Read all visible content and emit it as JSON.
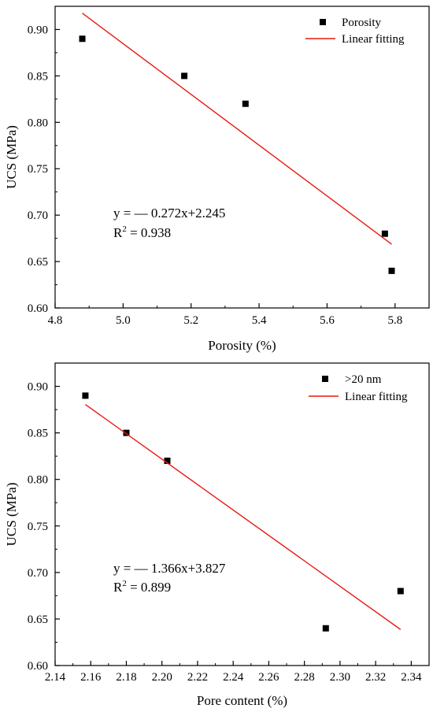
{
  "chart_data": [
    {
      "type": "scatter",
      "xlabel": "Porosity (%)",
      "ylabel": "UCS (MPa)",
      "xlim": [
        4.8,
        5.9
      ],
      "ylim": [
        0.6,
        0.925
      ],
      "xticks": [
        4.8,
        5.0,
        5.2,
        5.4,
        5.6,
        5.8
      ],
      "xtick_labels": [
        "4.8",
        "5.0",
        "5.2",
        "5.4",
        "5.6",
        "5.8"
      ],
      "yticks": [
        0.6,
        0.65,
        0.7,
        0.75,
        0.8,
        0.85,
        0.9
      ],
      "ytick_labels": [
        "0.60",
        "0.65",
        "0.70",
        "0.75",
        "0.80",
        "0.85",
        "0.90"
      ],
      "grid": false,
      "legend_position": "top-right",
      "series": [
        {
          "name": "Porosity",
          "kind": "scatter",
          "marker": "square",
          "color": "#000000",
          "points": [
            [
              4.88,
              0.89
            ],
            [
              5.18,
              0.85
            ],
            [
              5.36,
              0.82
            ],
            [
              5.77,
              0.68
            ],
            [
              5.79,
              0.64
            ]
          ]
        },
        {
          "name": "Linear fitting",
          "kind": "line",
          "color": "#e8190f",
          "points": [
            [
              4.88,
              0.9176
            ],
            [
              5.79,
              0.6687
            ]
          ]
        }
      ],
      "annotation": {
        "equation": "y = — 0.272x+2.245",
        "r2_prefix": "R",
        "r2_sup": "2",
        "r2_value": " = 0.938"
      }
    },
    {
      "type": "scatter",
      "xlabel": "Pore content (%)",
      "ylabel": "UCS (MPa)",
      "xlim": [
        2.14,
        2.35
      ],
      "ylim": [
        0.6,
        0.925
      ],
      "xticks": [
        2.14,
        2.16,
        2.18,
        2.2,
        2.22,
        2.24,
        2.26,
        2.28,
        2.3,
        2.32,
        2.34
      ],
      "xtick_labels": [
        "2.14",
        "2.16",
        "2.18",
        "2.20",
        "2.22",
        "2.24",
        "2.26",
        "2.28",
        "2.30",
        "2.32",
        "2.34"
      ],
      "yticks": [
        0.6,
        0.65,
        0.7,
        0.75,
        0.8,
        0.85,
        0.9
      ],
      "ytick_labels": [
        "0.60",
        "0.65",
        "0.70",
        "0.75",
        "0.80",
        "0.85",
        "0.90"
      ],
      "grid": false,
      "legend_position": "top-right",
      "series": [
        {
          "name": ">20 nm",
          "kind": "scatter",
          "marker": "square",
          "color": "#000000",
          "points": [
            [
              2.157,
              0.89
            ],
            [
              2.18,
              0.85
            ],
            [
              2.203,
              0.82
            ],
            [
              2.292,
              0.64
            ],
            [
              2.334,
              0.68
            ]
          ]
        },
        {
          "name": "Linear fitting",
          "kind": "line",
          "color": "#e8190f",
          "points": [
            [
              2.157,
              0.8805
            ],
            [
              2.334,
              0.6387
            ]
          ]
        }
      ],
      "annotation": {
        "equation": "y = — 1.366x+3.827",
        "r2_prefix": "R",
        "r2_sup": "2",
        "r2_value": " = 0.899"
      }
    }
  ]
}
